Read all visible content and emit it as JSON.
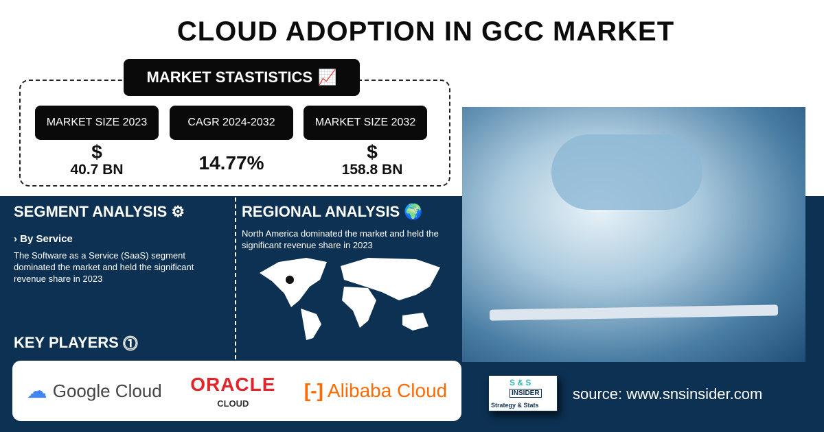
{
  "title": "CLOUD ADOPTION IN GCC MARKET",
  "stats": {
    "heading": "MARKET STASTISTICS",
    "icon": "chart-growth-icon",
    "items": [
      {
        "label": "MARKET SIZE 2023",
        "currency": "$",
        "value": "40.7 BN"
      },
      {
        "label": "CAGR 2024-2032",
        "value": "14.77%"
      },
      {
        "label": "MARKET SIZE 2032",
        "currency": "$",
        "value": "158.8 BN"
      }
    ]
  },
  "segment": {
    "heading": "SEGMENT ANALYSIS",
    "sub": "› By Service",
    "text": "The Software as a Service (SaaS) segment dominated the market and held the significant revenue share in 2023"
  },
  "regional": {
    "heading": "REGIONAL ANALYSIS",
    "text": "North America dominated the market and held the significant revenue share in 2023"
  },
  "key_players": {
    "heading": "KEY PLAYERS",
    "players": [
      "Google Cloud",
      "ORACLE",
      "CLOUD",
      "Alibaba Cloud"
    ]
  },
  "logo": {
    "top": "S & S",
    "mid": "INSIDER",
    "bottom": "Strategy & Stats"
  },
  "source": "source: www.snsinsider.com",
  "colors": {
    "navy": "#0c3152",
    "oracle": "#e0262b",
    "alibaba": "#ff6a00"
  }
}
